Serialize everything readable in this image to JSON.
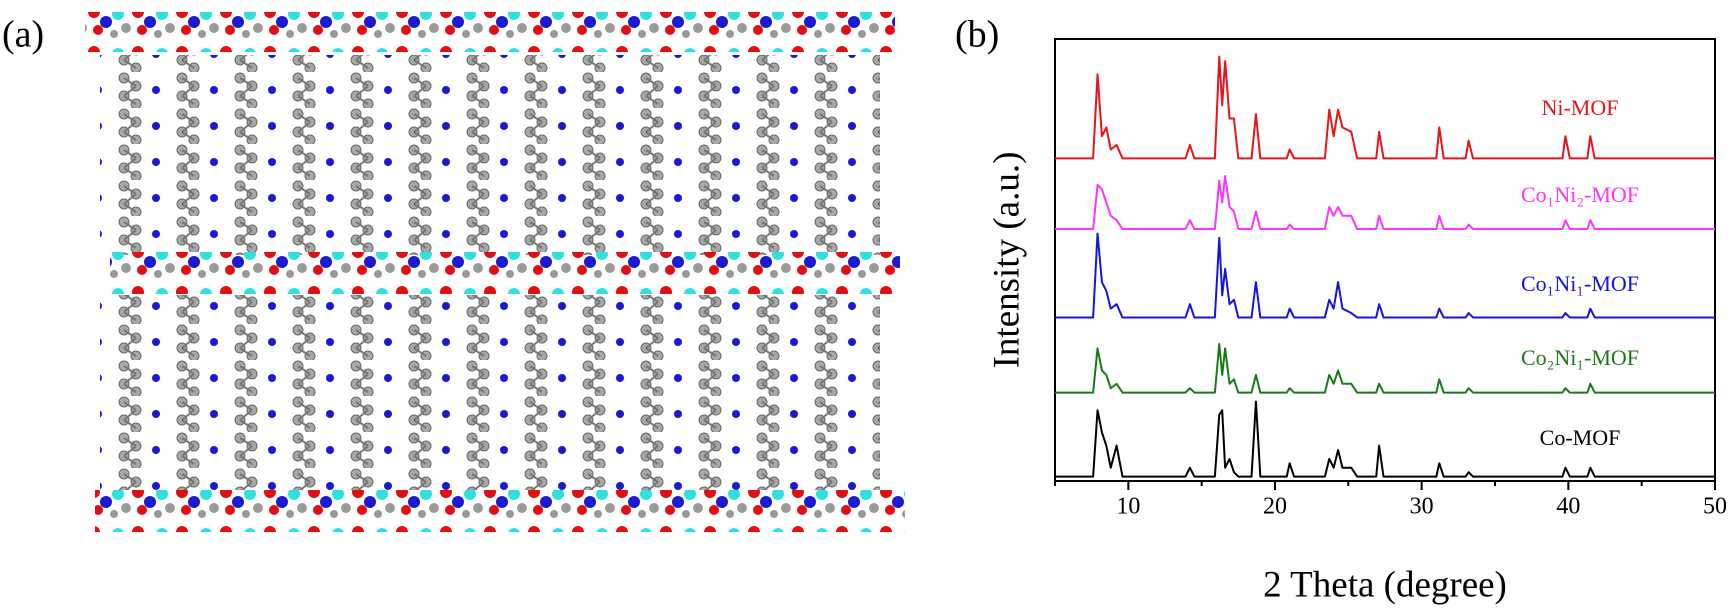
{
  "figure_label_a": "(a)",
  "chart_data": {
    "type": "line",
    "panel_label": "(b)",
    "xlabel": "2 Theta (degree)",
    "ylabel": "Intensity (a.u.)",
    "xlim": [
      5,
      50
    ],
    "xticks": [
      10,
      20,
      30,
      40,
      50
    ],
    "xminor_ticks": [
      5,
      15,
      25,
      35,
      45
    ],
    "ylim": [
      0,
      100
    ],
    "x": [
      5,
      7.6,
      7.9,
      8.2,
      8.5,
      8.8,
      9.2,
      9.6,
      13.9,
      14.2,
      14.5,
      15.9,
      16.2,
      16.4,
      16.6,
      16.9,
      17.2,
      17.5,
      18.4,
      18.7,
      19.0,
      20.8,
      21.0,
      21.3,
      23.4,
      23.7,
      24.0,
      24.3,
      24.6,
      25.2,
      25.6,
      26.9,
      27.1,
      27.4,
      31.0,
      31.2,
      31.5,
      33.0,
      33.2,
      33.5,
      39.6,
      39.8,
      40.1,
      41.3,
      41.5,
      41.8,
      50
    ],
    "series": [
      {
        "name": "Ni-MOF",
        "color": "#e8141a",
        "values": [
          73,
          73,
          92,
          78,
          80,
          75,
          76,
          73,
          73,
          76,
          73,
          73,
          96,
          85,
          95,
          82,
          82,
          73,
          73,
          83,
          73,
          73,
          75,
          73,
          73,
          84,
          78,
          84,
          80,
          79,
          73,
          73,
          79,
          73,
          73,
          80,
          73,
          73,
          77,
          73,
          73,
          78,
          73,
          73,
          78,
          73,
          73
        ]
      },
      {
        "name": "Co₁Ni₂-MOF",
        "color": "#ff33ff",
        "values": [
          57,
          57,
          67,
          66,
          63,
          60,
          59,
          57,
          57,
          59,
          57,
          57,
          68,
          63,
          69,
          62,
          61,
          57,
          57,
          61,
          57,
          57,
          58,
          57,
          57,
          62,
          60,
          62,
          60,
          60,
          57,
          57,
          60,
          57,
          57,
          60,
          57,
          57,
          58,
          57,
          57,
          59,
          57,
          57,
          59,
          57,
          57
        ]
      },
      {
        "name": "Co₁Ni₁-MOF",
        "color": "#1515dd",
        "values": [
          37,
          37,
          56,
          45,
          43,
          39,
          40,
          37,
          37,
          40,
          37,
          37,
          55,
          42,
          48,
          40,
          41,
          37,
          37,
          45,
          37,
          37,
          39,
          37,
          37,
          41,
          39,
          45,
          39,
          38,
          37,
          37,
          40,
          37,
          37,
          39,
          37,
          37,
          38,
          37,
          37,
          38,
          37,
          37,
          39,
          37,
          37
        ]
      },
      {
        "name": "Co₂Ni₁-MOF",
        "color": "#1a7a1a",
        "values": [
          20,
          20,
          30,
          25,
          24,
          21,
          22,
          20,
          20,
          21,
          20,
          20,
          31,
          24,
          30,
          22,
          23,
          20,
          20,
          24,
          20,
          20,
          21,
          20,
          20,
          24,
          22,
          25,
          22,
          22,
          20,
          20,
          22,
          20,
          20,
          23,
          20,
          20,
          21,
          20,
          20,
          21,
          20,
          20,
          22,
          20,
          20
        ]
      },
      {
        "name": "Co-MOF",
        "color": "#000000",
        "values": [
          1,
          1,
          16,
          11,
          8,
          3,
          8,
          1,
          1,
          3,
          1,
          1,
          15,
          16,
          3,
          5,
          2,
          1,
          1,
          18,
          1,
          1,
          4,
          1,
          1,
          5,
          3,
          7,
          3,
          3,
          1,
          1,
          8,
          1,
          1,
          4,
          1,
          1,
          2,
          1,
          1,
          3,
          1,
          1,
          3,
          1,
          1
        ]
      }
    ]
  }
}
